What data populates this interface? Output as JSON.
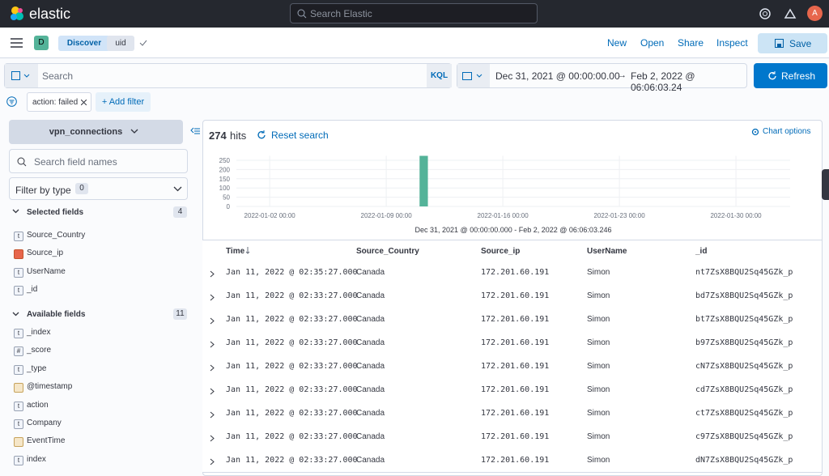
{
  "header": {
    "brand": "elastic",
    "search_placeholder": "Search Elastic",
    "avatar": "A"
  },
  "nav": {
    "space": "D",
    "breadcrumbs": [
      "Discover",
      "uid"
    ],
    "actions": [
      "New",
      "Open",
      "Share",
      "Inspect"
    ],
    "save": "Save"
  },
  "query": {
    "placeholder": "Search",
    "language": "KQL",
    "time_start": "Dec 31, 2021 @ 00:00:00.00",
    "arrow": "→",
    "time_end": "Feb 2, 2022 @ 06:06:03.24",
    "refresh": "Refresh"
  },
  "filters": {
    "pills": [
      "action: failed"
    ],
    "add": "+ Add filter"
  },
  "sidebar": {
    "index_pattern": "vpn_connections",
    "search_placeholder": "Search field names",
    "filter_by_type": "Filter by type",
    "filter_count": 0,
    "selected_title": "Selected fields",
    "selected_count": 4,
    "selected": [
      {
        "type": "t",
        "name": "Source_Country"
      },
      {
        "name": "Source_ip"
      },
      {
        "type": "t",
        "name": "UserName"
      },
      {
        "type": "t",
        "name": "_id"
      }
    ],
    "available_title": "Available fields",
    "available_count": 11,
    "available": [
      {
        "type": "t",
        "name": "_index"
      },
      {
        "type": "#",
        "name": "_score"
      },
      {
        "type": "t",
        "name": "_type"
      },
      {
        "name": "@timestamp"
      },
      {
        "type": "t",
        "name": "action"
      },
      {
        "type": "t",
        "name": "Company"
      },
      {
        "name": "EventTime"
      },
      {
        "type": "t",
        "name": "index"
      }
    ]
  },
  "results": {
    "hits": 274,
    "hits_label": "hits",
    "reset": "Reset search",
    "chart_options": "Chart options",
    "histogram": {
      "type": "histogram",
      "bins": [
        "2022-01-11T00:00:00",
        "2022-01-11T12:00:00"
      ],
      "counts": [
        274
      ],
      "color": "#54b399",
      "xlim": [
        "2021-12-31T00:00:00.000",
        "2022-02-02T06:06:03.246"
      ],
      "xticks": [
        {
          "value": "2022-01-02T00:00:00",
          "label": "2022-01-02 00:00"
        },
        {
          "value": "2022-01-09T00:00:00",
          "label": "2022-01-09 00:00"
        },
        {
          "value": "2022-01-16T00:00:00",
          "label": "2022-01-16 00:00"
        },
        {
          "value": "2022-01-23T00:00:00",
          "label": "2022-01-23 00:00"
        },
        {
          "value": "2022-01-30T00:00:00",
          "label": "2022-01-30 00:00"
        }
      ],
      "ylim": [
        0,
        274
      ],
      "yticks": [
        0,
        50,
        100,
        150,
        200,
        250
      ],
      "grid": true,
      "xlabel": "Dec 31, 2021 @ 00:00:00.000 - Feb 2, 2022 @ 06:06:03.246"
    },
    "columns": [
      "Time",
      "Source_Country",
      "Source_ip",
      "UserName",
      "_id"
    ],
    "rows": [
      [
        "Jan 11, 2022 @ 02:35:27.000",
        "Canada",
        "172.201.60.191",
        "Simon",
        "nt7ZsX8BQU2Sq45GZk_p"
      ],
      [
        "Jan 11, 2022 @ 02:33:27.000",
        "Canada",
        "172.201.60.191",
        "Simon",
        "bd7ZsX8BQU2Sq45GZk_p"
      ],
      [
        "Jan 11, 2022 @ 02:33:27.000",
        "Canada",
        "172.201.60.191",
        "Simon",
        "bt7ZsX8BQU2Sq45GZk_p"
      ],
      [
        "Jan 11, 2022 @ 02:33:27.000",
        "Canada",
        "172.201.60.191",
        "Simon",
        "b97ZsX8BQU2Sq45GZk_p"
      ],
      [
        "Jan 11, 2022 @ 02:33:27.000",
        "Canada",
        "172.201.60.191",
        "Simon",
        "cN7ZsX8BQU2Sq45GZk_p"
      ],
      [
        "Jan 11, 2022 @ 02:33:27.000",
        "Canada",
        "172.201.60.191",
        "Simon",
        "cd7ZsX8BQU2Sq45GZk_p"
      ],
      [
        "Jan 11, 2022 @ 02:33:27.000",
        "Canada",
        "172.201.60.191",
        "Simon",
        "ct7ZsX8BQU2Sq45GZk_p"
      ],
      [
        "Jan 11, 2022 @ 02:33:27.000",
        "Canada",
        "172.201.60.191",
        "Simon",
        "c97ZsX8BQU2Sq45GZk_p"
      ],
      [
        "Jan 11, 2022 @ 02:33:27.000",
        "Canada",
        "172.201.60.191",
        "Simon",
        "dN7ZsX8BQU2Sq45GZk_p"
      ]
    ]
  }
}
